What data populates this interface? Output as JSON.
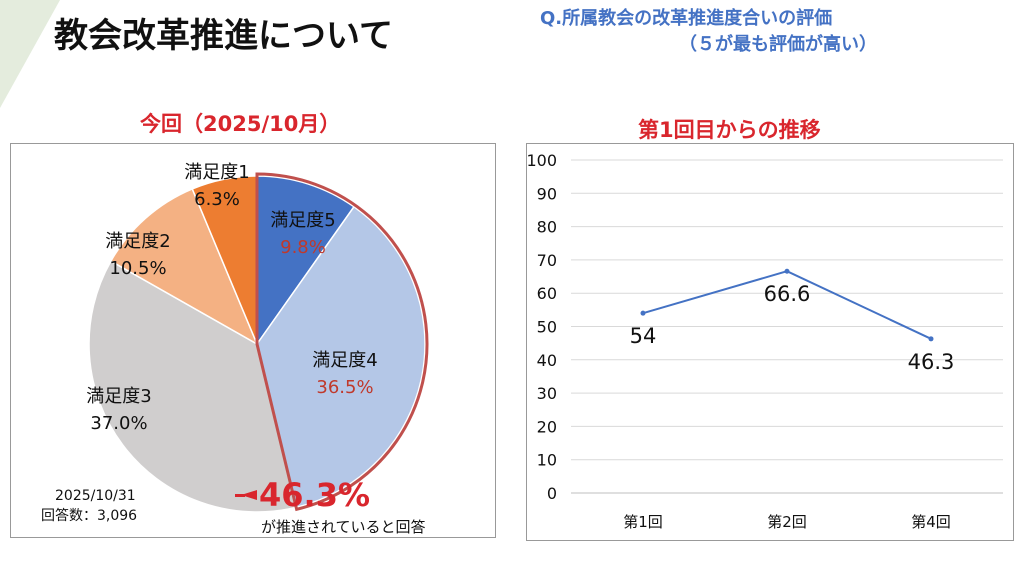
{
  "slide_title": "教会改革推進について",
  "question": {
    "line1": "Q.所属教会の改革推進度合いの評価",
    "line2": "（５が最も評価が高い）"
  },
  "left": {
    "title": "今回（2025/10月）",
    "date": "2025/10/31",
    "respondents": "回答数：3,096",
    "highlight_value": "46.3%",
    "highlight_caption": "が推進されていると回答"
  },
  "right": {
    "title": "第1回目からの推移"
  },
  "chart_data": [
    {
      "type": "pie",
      "title": "今回（2025/10月）",
      "slices": [
        {
          "label": "満足度5",
          "value": 9.8,
          "display": "9.8%",
          "color": "#4472c4"
        },
        {
          "label": "満足度4",
          "value": 36.5,
          "display": "36.5%",
          "color": "#b4c7e7"
        },
        {
          "label": "満足度3",
          "value": 37.0,
          "display": "37.0%",
          "color": "#d0cece"
        },
        {
          "label": "満足度2",
          "value": 10.5,
          "display": "10.5%",
          "color": "#f4b183"
        },
        {
          "label": "満足度1",
          "value": 6.3,
          "display": "6.3%",
          "color": "#ed7d31"
        }
      ],
      "highlight": {
        "slices": [
          "満足度5",
          "満足度4"
        ],
        "total": "46.3%",
        "color": "#c0504d"
      }
    },
    {
      "type": "line",
      "title": "第1回目からの推移",
      "categories": [
        "第1回",
        "第2回",
        "第4回"
      ],
      "values": [
        54,
        66.6,
        46.3
      ],
      "labels": [
        "54",
        "66.6",
        "46.3"
      ],
      "ylim": [
        0,
        100
      ],
      "yticks": [
        "0",
        "10",
        "20",
        "30",
        "40",
        "50",
        "60",
        "70",
        "80",
        "90",
        "100"
      ],
      "color": "#4472c4",
      "grid": true
    }
  ]
}
